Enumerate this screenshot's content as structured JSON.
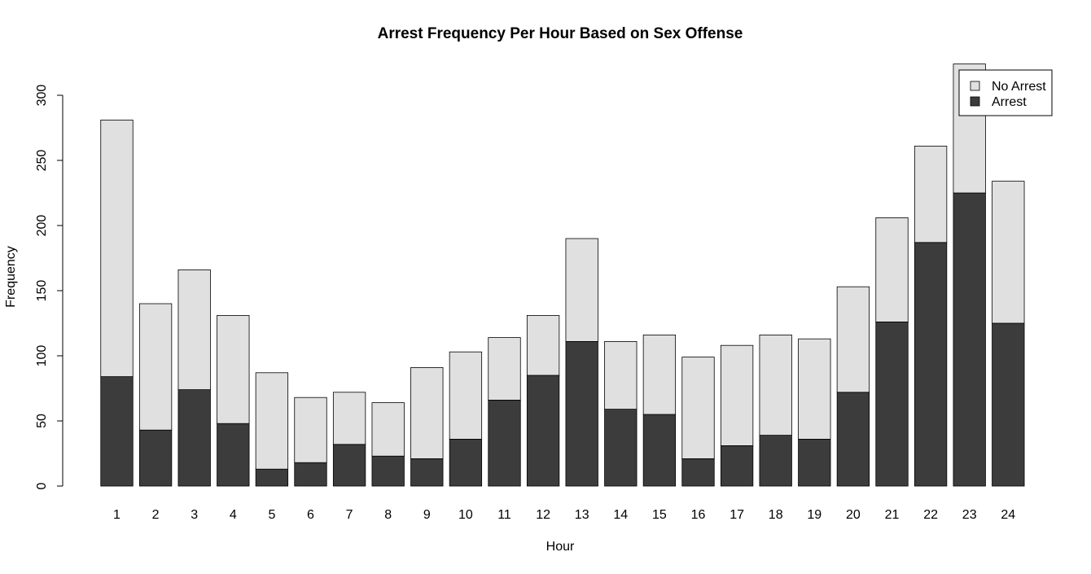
{
  "chart_data": {
    "type": "bar",
    "stacked": true,
    "title": "Arrest Frequency Per Hour Based on Sex Offense",
    "xlabel": "Hour",
    "ylabel": "Frequency",
    "ylim": [
      0,
      325
    ],
    "yticks": [
      0,
      50,
      100,
      150,
      200,
      250,
      300
    ],
    "categories": [
      "1",
      "2",
      "3",
      "4",
      "5",
      "6",
      "7",
      "8",
      "9",
      "10",
      "11",
      "12",
      "13",
      "14",
      "15",
      "16",
      "17",
      "18",
      "19",
      "20",
      "21",
      "22",
      "23",
      "24"
    ],
    "series": [
      {
        "name": "Arrest",
        "color": "#3c3c3c",
        "values": [
          84,
          43,
          74,
          48,
          13,
          18,
          32,
          23,
          21,
          36,
          66,
          85,
          111,
          59,
          55,
          21,
          31,
          39,
          36,
          72,
          126,
          187,
          225,
          125
        ]
      },
      {
        "name": "No Arrest",
        "color": "#e0e0e0",
        "values": [
          197,
          97,
          92,
          83,
          74,
          50,
          40,
          41,
          70,
          67,
          48,
          46,
          79,
          52,
          61,
          78,
          77,
          77,
          77,
          81,
          80,
          74,
          99,
          109
        ]
      }
    ],
    "legend": {
      "placement": "top-right",
      "entries": [
        "No Arrest",
        "Arrest"
      ]
    },
    "grid": false
  }
}
